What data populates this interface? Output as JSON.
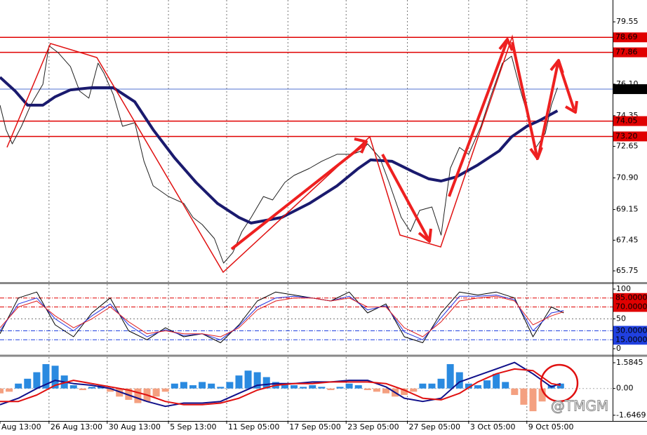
{
  "chart_data": [
    {
      "type": "line",
      "xlim": [
        0,
        200
      ],
      "ylim": [
        65.13,
        80.76
      ],
      "yticks": [
        79.55,
        {
          "value": 76.1,
          "label": "76.10"
        },
        74.35,
        72.65,
        {
          "value": 70.9,
          "label": "70.90"
        },
        69.15,
        67.45,
        65.75
      ],
      "levels": [
        78.69,
        77.86,
        74.05,
        {
          "value": 73.2,
          "label": "73.20"
        }
      ],
      "level_color": "#e00000",
      "last_price": 75.82,
      "last_price_color": "#5070d0",
      "series": [
        {
          "color": "#202020",
          "x": [
            0,
            2,
            4,
            7,
            10,
            14,
            16,
            19,
            23,
            26,
            29,
            32,
            34,
            37,
            40,
            44,
            47,
            50,
            55,
            60,
            63,
            66,
            70,
            73,
            76,
            79,
            82,
            86,
            89,
            93,
            96,
            101,
            105,
            110,
            115,
            118,
            120,
            124,
            127,
            131,
            134,
            137,
            141,
            144,
            147,
            150,
            153,
            157,
            160,
            164,
            167,
            170,
            172,
            175,
            178,
            180,
            182
          ],
          "values": [
            74.93,
            73.57,
            72.79,
            73.76,
            74.93,
            76.09,
            78.23,
            77.84,
            77.07,
            75.71,
            75.32,
            77.26,
            76.68,
            75.51,
            73.76,
            73.96,
            71.82,
            70.46,
            69.87,
            69.49,
            68.71,
            68.32,
            67.54,
            66.18,
            66.76,
            67.93,
            68.71,
            69.87,
            69.68,
            70.65,
            71.04,
            71.43,
            71.82,
            72.21,
            72.21,
            72.4,
            72.79,
            72.01,
            70.65,
            68.71,
            67.93,
            69.1,
            69.29,
            67.73,
            71.43,
            72.59,
            72.21,
            73.76,
            75.32,
            77.26,
            77.65,
            75.71,
            74.54,
            72.59,
            73.37,
            74.93,
            75.9
          ]
        },
        {
          "color": "#1a1a6e",
          "x": [
            0,
            5,
            9,
            14,
            18,
            23,
            30,
            37,
            44,
            50,
            57,
            64,
            71,
            78,
            82,
            92,
            101,
            110,
            117,
            121,
            128,
            135,
            140,
            144,
            149,
            156,
            163,
            167,
            172,
            176,
            182
          ],
          "values": [
            76.48,
            75.71,
            74.93,
            74.93,
            75.4,
            75.78,
            75.9,
            75.9,
            75.12,
            73.57,
            72.01,
            70.65,
            69.49,
            68.71,
            68.4,
            68.71,
            69.49,
            70.46,
            71.43,
            71.9,
            71.82,
            71.23,
            70.85,
            70.73,
            70.96,
            71.62,
            72.4,
            73.18,
            73.76,
            74.07,
            74.62
          ]
        }
      ]
    },
    {
      "type": "line",
      "xlim": [
        0,
        200
      ],
      "ylim": [
        -9.4,
        108.2
      ],
      "yticks": [
        100,
        50,
        0
      ],
      "levels": [
        {
          "value": 85,
          "label": "85.0000",
          "color": "#e00000"
        },
        {
          "value": 70,
          "label": "70.0000",
          "color": "#e00000"
        },
        {
          "value": 30,
          "label": "30.0000",
          "color": "#2040e0"
        },
        {
          "value": 15,
          "label": "15.0000",
          "color": "#2040e0"
        }
      ],
      "x": [
        0,
        6,
        12,
        18,
        24,
        30,
        36,
        42,
        48,
        54,
        60,
        66,
        72,
        78,
        84,
        90,
        96,
        102,
        108,
        114,
        120,
        126,
        132,
        138,
        144,
        150,
        156,
        162,
        168,
        174,
        180,
        184
      ],
      "series": [
        {
          "color": "#000000",
          "values": [
            25,
            85,
            95,
            40,
            20,
            60,
            85,
            30,
            15,
            35,
            20,
            25,
            10,
            40,
            80,
            95,
            90,
            85,
            80,
            95,
            60,
            75,
            20,
            10,
            60,
            95,
            90,
            95,
            85,
            20,
            70,
            60
          ]
        },
        {
          "color": "#2030e0",
          "values": [
            30,
            75,
            85,
            50,
            30,
            55,
            75,
            40,
            20,
            32,
            22,
            25,
            15,
            38,
            70,
            85,
            88,
            85,
            80,
            88,
            65,
            72,
            28,
            15,
            52,
            88,
            88,
            90,
            82,
            30,
            60,
            64
          ]
        },
        {
          "color": "#e02020",
          "values": [
            35,
            70,
            80,
            55,
            35,
            50,
            70,
            45,
            25,
            30,
            25,
            25,
            20,
            35,
            65,
            80,
            85,
            85,
            80,
            85,
            70,
            70,
            35,
            20,
            45,
            80,
            85,
            88,
            80,
            40,
            55,
            62
          ]
        }
      ]
    },
    {
      "type": "combo",
      "xlim": [
        0,
        200
      ],
      "ylim": [
        -2.0,
        1.93
      ],
      "yticks": [
        1.5845,
        {
          "value": 0,
          "label": "0.00"
        },
        -1.6469
      ],
      "xticks": [
        {
          "value": 0,
          "label": "Aug 13:00"
        },
        {
          "value": 16,
          "label": "26 Aug 13:00"
        },
        {
          "value": 35,
          "label": "30 Aug 13:00"
        },
        {
          "value": 55,
          "label": "5 Sep 13:00"
        },
        {
          "value": 74,
          "label": "11 Sep 05:00"
        },
        {
          "value": 94,
          "label": "17 Sep 05:00"
        },
        {
          "value": 113,
          "label": "23 Sep 05:00"
        },
        {
          "value": 133,
          "label": "27 Sep 05:00"
        },
        {
          "value": 153,
          "label": "3 Oct 05:00"
        },
        {
          "value": 172,
          "label": "9 Oct 05:00"
        }
      ],
      "histogram": {
        "positive_color": "#2a8ae0",
        "negative_color": "#f4a080",
        "x": [
          0,
          3,
          6,
          9,
          12,
          15,
          18,
          21,
          24,
          27,
          30,
          33,
          36,
          39,
          42,
          45,
          48,
          51,
          54,
          57,
          60,
          63,
          66,
          69,
          72,
          75,
          78,
          81,
          84,
          87,
          90,
          93,
          96,
          99,
          102,
          105,
          108,
          111,
          114,
          117,
          120,
          123,
          126,
          129,
          132,
          135,
          138,
          141,
          144,
          147,
          150,
          153,
          156,
          159,
          162,
          165,
          168,
          171,
          174,
          177,
          180,
          183
        ],
        "values": [
          -0.3,
          -0.2,
          0.3,
          0.6,
          1.0,
          1.5,
          1.4,
          0.8,
          0.2,
          -0.1,
          0.1,
          0.2,
          -0.2,
          -0.5,
          -0.7,
          -0.9,
          -0.8,
          -0.5,
          -0.2,
          0.3,
          0.4,
          0.2,
          0.4,
          0.3,
          0.1,
          0.4,
          0.8,
          1.1,
          1.0,
          0.7,
          0.4,
          0.3,
          0.2,
          0.1,
          0.2,
          0.1,
          -0.1,
          0.1,
          0.3,
          0.2,
          -0.1,
          -0.2,
          -0.3,
          -0.5,
          -0.4,
          -0.2,
          0.3,
          0.3,
          0.6,
          1.5,
          1.0,
          0.3,
          0.2,
          0.5,
          0.9,
          0.4,
          -0.4,
          -1.0,
          -1.4,
          -0.8,
          0.2,
          0.3
        ]
      },
      "x": [
        0,
        6,
        12,
        18,
        24,
        30,
        36,
        42,
        48,
        54,
        60,
        66,
        72,
        78,
        84,
        90,
        96,
        102,
        108,
        114,
        120,
        126,
        132,
        138,
        144,
        150,
        156,
        162,
        168,
        174,
        180,
        183
      ],
      "series": [
        {
          "color": "#10108a",
          "values": [
            -1.0,
            -0.6,
            0.0,
            0.5,
            0.3,
            0.2,
            0.0,
            -0.4,
            -0.8,
            -1.1,
            -0.9,
            -0.9,
            -0.8,
            -0.3,
            0.2,
            0.3,
            0.3,
            0.4,
            0.4,
            0.5,
            0.5,
            0.1,
            -0.6,
            -0.8,
            -0.6,
            0.4,
            0.8,
            1.2,
            1.6,
            0.9,
            0.1,
            0.3
          ]
        },
        {
          "color": "#e01010",
          "values": [
            -0.8,
            -0.8,
            -0.4,
            0.2,
            0.5,
            0.3,
            0.1,
            -0.1,
            -0.4,
            -0.8,
            -1.0,
            -1.0,
            -0.9,
            -0.6,
            -0.1,
            0.2,
            0.3,
            0.3,
            0.4,
            0.4,
            0.4,
            0.3,
            -0.1,
            -0.6,
            -0.7,
            -0.3,
            0.4,
            0.9,
            1.2,
            1.1,
            0.3,
            0.2
          ]
        }
      ]
    }
  ],
  "watermark": "@TMGM"
}
